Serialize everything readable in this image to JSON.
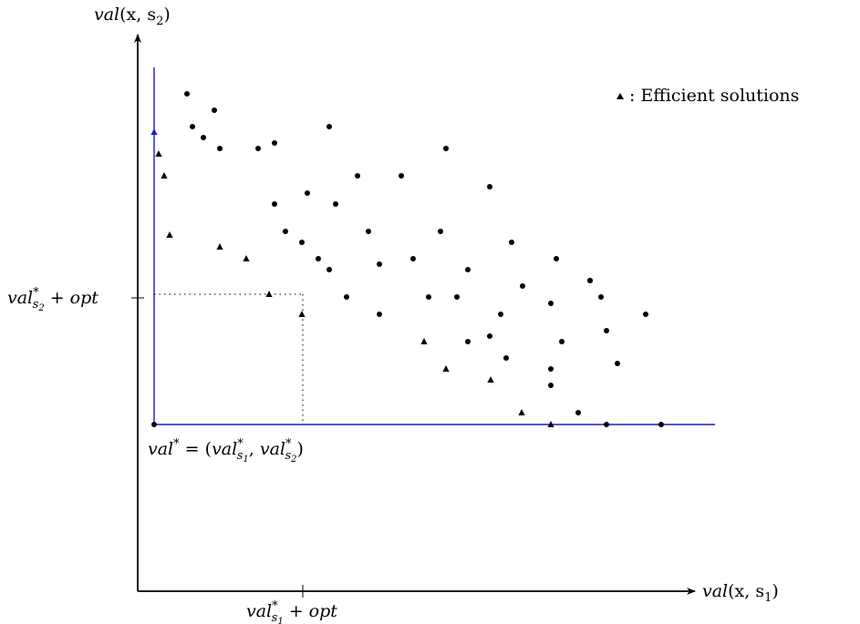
{
  "axes": {
    "y_label": {
      "base": "val",
      "args": "(x, s",
      "sub": "2",
      "close": ")"
    },
    "x_label": {
      "base": "val",
      "args": "(x, s",
      "sub": "1",
      "close": ")"
    }
  },
  "ticks": {
    "y_tick": {
      "base": "val",
      "sup": "*",
      "sub": "s",
      "subsub": "2",
      "rest": " + opt"
    },
    "x_tick": {
      "base": "val",
      "sup": "*",
      "sub": "s",
      "subsub": "1",
      "rest": " + opt"
    }
  },
  "ideal_point": {
    "label_pre": "val",
    "label_sup": "*",
    "label_eq": " = (",
    "a_base": "val",
    "a_sup": "*",
    "a_sub": "s",
    "a_subsub": "1",
    "sep": ", ",
    "b_base": "val",
    "b_sup": "*",
    "b_sub": "s",
    "b_subsub": "2",
    "close": ")"
  },
  "legend": {
    "marker": "triangle",
    "text": ": Efficient solutions"
  },
  "colors": {
    "frontier": "#1a1acc",
    "points": "#000000",
    "guides": "#000000"
  },
  "chart_data": {
    "type": "scatter",
    "note_units": "",
    "ideal": [
      0,
      0
    ],
    "thresholds": {
      "x": 162,
      "y": 143
    },
    "efficient": [
      [
        0,
        321
      ],
      [
        5,
        297
      ],
      [
        11,
        273
      ],
      [
        17,
        208
      ],
      [
        72,
        195
      ],
      [
        101,
        182
      ],
      [
        126,
        143
      ],
      [
        162,
        121
      ],
      [
        296,
        91
      ],
      [
        320,
        61
      ],
      [
        369,
        49
      ],
      [
        403,
        13
      ],
      [
        435,
        0
      ]
    ],
    "dominated": [
      [
        36,
        363
      ],
      [
        42,
        327
      ],
      [
        54,
        315
      ],
      [
        66,
        345
      ],
      [
        72,
        303
      ],
      [
        114,
        303
      ],
      [
        132,
        309
      ],
      [
        192,
        327
      ],
      [
        132,
        242
      ],
      [
        144,
        212
      ],
      [
        162,
        200
      ],
      [
        168,
        254
      ],
      [
        180,
        182
      ],
      [
        192,
        170
      ],
      [
        199,
        242
      ],
      [
        211,
        140
      ],
      [
        223,
        273
      ],
      [
        235,
        212
      ],
      [
        247,
        176
      ],
      [
        247,
        121
      ],
      [
        271,
        273
      ],
      [
        284,
        182
      ],
      [
        301,
        140
      ],
      [
        314,
        212
      ],
      [
        320,
        303
      ],
      [
        332,
        140
      ],
      [
        344,
        170
      ],
      [
        344,
        91
      ],
      [
        368,
        97
      ],
      [
        368,
        261
      ],
      [
        380,
        121
      ],
      [
        386,
        73
      ],
      [
        392,
        200
      ],
      [
        404,
        152
      ],
      [
        435,
        133
      ],
      [
        435,
        61
      ],
      [
        435,
        43
      ],
      [
        441,
        182
      ],
      [
        447,
        91
      ],
      [
        465,
        13
      ],
      [
        478,
        158
      ],
      [
        490,
        140
      ],
      [
        496,
        103
      ],
      [
        508,
        67
      ],
      [
        539,
        121
      ],
      [
        556,
        0
      ],
      [
        496,
        0
      ],
      [
        478,
        158
      ]
    ],
    "frontier": {
      "x_max": 615,
      "y_max": 392
    }
  }
}
